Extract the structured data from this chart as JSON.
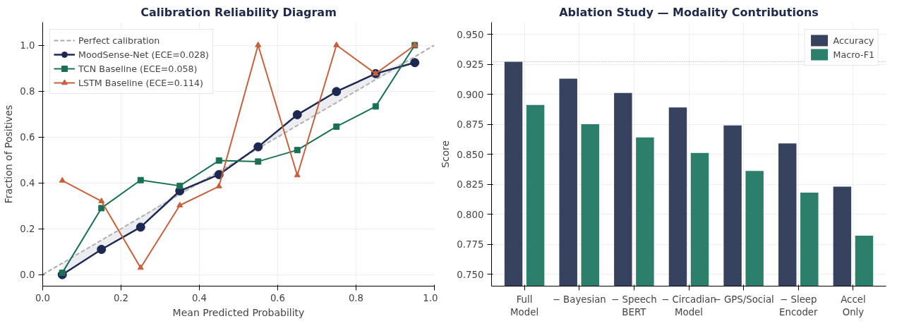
{
  "chart_data": [
    {
      "type": "line",
      "title": "Calibration Reliability Diagram",
      "xlabel": "Mean Predicted Probability",
      "ylabel": "Fraction of Positives",
      "xlim": [
        0,
        1
      ],
      "ylim": [
        -0.05,
        1.1
      ],
      "xticks": [
        {
          "value": 0,
          "label": "0.0"
        },
        {
          "value": 0.2,
          "label": "0.2"
        },
        {
          "value": 0.4,
          "label": "0.4"
        },
        {
          "value": 0.6,
          "label": "0.6"
        },
        {
          "value": 0.8,
          "label": "0.8"
        },
        {
          "value": 1,
          "label": "1.0"
        }
      ],
      "yticks": [
        {
          "value": 0,
          "label": "0.0"
        },
        {
          "value": 0.2,
          "label": "0.2"
        },
        {
          "value": 0.4,
          "label": "0.4"
        },
        {
          "value": 0.6,
          "label": "0.6"
        },
        {
          "value": 0.8,
          "label": "0.8"
        },
        {
          "value": 1,
          "label": "1.0"
        }
      ],
      "grid": true,
      "legend": "top left",
      "x": [
        0.05,
        0.15,
        0.25,
        0.35,
        0.45,
        0.55,
        0.65,
        0.75,
        0.85,
        0.95
      ],
      "series": [
        {
          "name": "Perfect calibration",
          "color": "#aaaaaa",
          "x": [
            0,
            1
          ],
          "values": [
            0,
            1
          ],
          "line_style": "dashed",
          "marker": "none"
        },
        {
          "name": "MoodSense-Net (ECE=0.028)",
          "color": "#1d2951",
          "marker": "circle",
          "line_style": "solid",
          "values": [
            0.0,
            0.11,
            0.207,
            0.365,
            0.436,
            0.557,
            0.697,
            0.798,
            0.876,
            0.924
          ],
          "lower": [
            0.0,
            0.11,
            0.207,
            0.35,
            0.436,
            0.55,
            0.65,
            0.75,
            0.85,
            0.924
          ],
          "upper": [
            0.05,
            0.15,
            0.25,
            0.365,
            0.45,
            0.557,
            0.697,
            0.798,
            0.876,
            0.95
          ]
        },
        {
          "name": "TCN Baseline (ECE=0.058)",
          "color": "#1a7055",
          "marker": "square",
          "line_style": "solid",
          "values": [
            0.008,
            0.29,
            0.412,
            0.387,
            0.497,
            0.493,
            0.543,
            0.645,
            0.733,
            1.0
          ]
        },
        {
          "name": "LSTM Baseline (ECE=0.114)",
          "color": "#c8603b",
          "marker": "triangle",
          "line_style": "solid",
          "values": [
            0.41,
            0.32,
            0.03,
            0.302,
            0.385,
            1.0,
            0.433,
            1.0,
            0.876,
            1.0
          ]
        }
      ]
    },
    {
      "type": "bar",
      "title": "Ablation Study — Modality Contributions",
      "ylabel": "Score",
      "ylim": [
        0.74,
        0.96
      ],
      "yticks": [
        {
          "value": 0.75,
          "label": "0.750"
        },
        {
          "value": 0.775,
          "label": "0.775"
        },
        {
          "value": 0.8,
          "label": "0.800"
        },
        {
          "value": 0.825,
          "label": "0.825"
        },
        {
          "value": 0.85,
          "label": "0.850"
        },
        {
          "value": 0.875,
          "label": "0.875"
        },
        {
          "value": 0.9,
          "label": "0.900"
        },
        {
          "value": 0.925,
          "label": "0.925"
        },
        {
          "value": 0.95,
          "label": "0.950"
        }
      ],
      "grid": true,
      "legend": "top right",
      "categories": [
        "Full\nModel",
        "− Bayesian",
        "− Speech\nBERT",
        "− Circadian\nModel",
        "− GPS/Social",
        "− Sleep\nEncoder",
        "Accel\nOnly"
      ],
      "series": [
        {
          "name": "Accuracy",
          "color": "#36425e",
          "values": [
            0.927,
            0.913,
            0.901,
            0.889,
            0.874,
            0.859,
            0.823
          ]
        },
        {
          "name": "Macro-F1",
          "color": "#2b7f6b",
          "values": [
            0.891,
            0.875,
            0.864,
            0.851,
            0.836,
            0.818,
            0.782
          ]
        }
      ],
      "ref_lines": [
        {
          "axis": "y",
          "value": 0.927,
          "color": "#999999",
          "line_style": "dotted"
        }
      ]
    }
  ]
}
